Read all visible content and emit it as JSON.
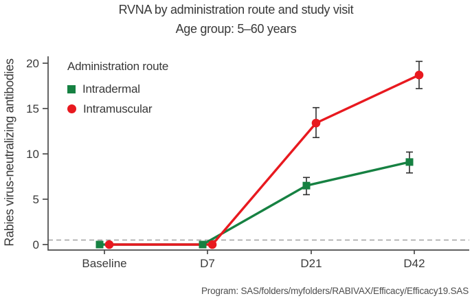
{
  "header": {
    "title": "RVNA by administration route and study visit",
    "subtitle": "Age group: 5–60 years"
  },
  "legend": {
    "title": "Administration route",
    "items": [
      {
        "label": "Intradermal",
        "marker": "square",
        "color": "#168142"
      },
      {
        "label": "Intramuscular",
        "marker": "circle",
        "color": "#e8191f"
      }
    ]
  },
  "footer": {
    "program_note": "Program: SAS/folders/myfolders/RABIVAX/Efficacy/Efficacy19.SAS"
  },
  "chart_data": {
    "type": "line",
    "title": "RVNA by administration route and study visit",
    "subtitle": "Age group: 5–60 years",
    "xlabel": "",
    "ylabel": "Rabies virus-neutralizing antibodies",
    "categories": [
      "Baseline",
      "D7",
      "D21",
      "D42"
    ],
    "series": [
      {
        "name": "Intradermal",
        "marker": "square",
        "color": "#168142",
        "values": [
          0,
          0,
          6.5,
          9.1
        ],
        "error_low": [
          null,
          null,
          5.5,
          7.9
        ],
        "error_high": [
          null,
          null,
          7.4,
          10.2
        ],
        "x_offset": -7
      },
      {
        "name": "Intramuscular",
        "marker": "circle",
        "color": "#e8191f",
        "values": [
          0,
          0,
          13.4,
          18.7
        ],
        "error_low": [
          null,
          null,
          11.8,
          17.2
        ],
        "error_high": [
          null,
          null,
          15.1,
          20.2
        ],
        "x_offset": 7
      }
    ],
    "yticks": [
      0,
      5,
      10,
      15,
      20
    ],
    "ylim": [
      -0.6,
      20.8
    ],
    "reference_line": {
      "y": 0.5,
      "style": "dashed",
      "color": "#9a9a9a"
    },
    "grid": false,
    "legend_position": "top-left-inside",
    "axis_color": "#4a4a4a",
    "error_bar_color": "#2e2e2e"
  }
}
